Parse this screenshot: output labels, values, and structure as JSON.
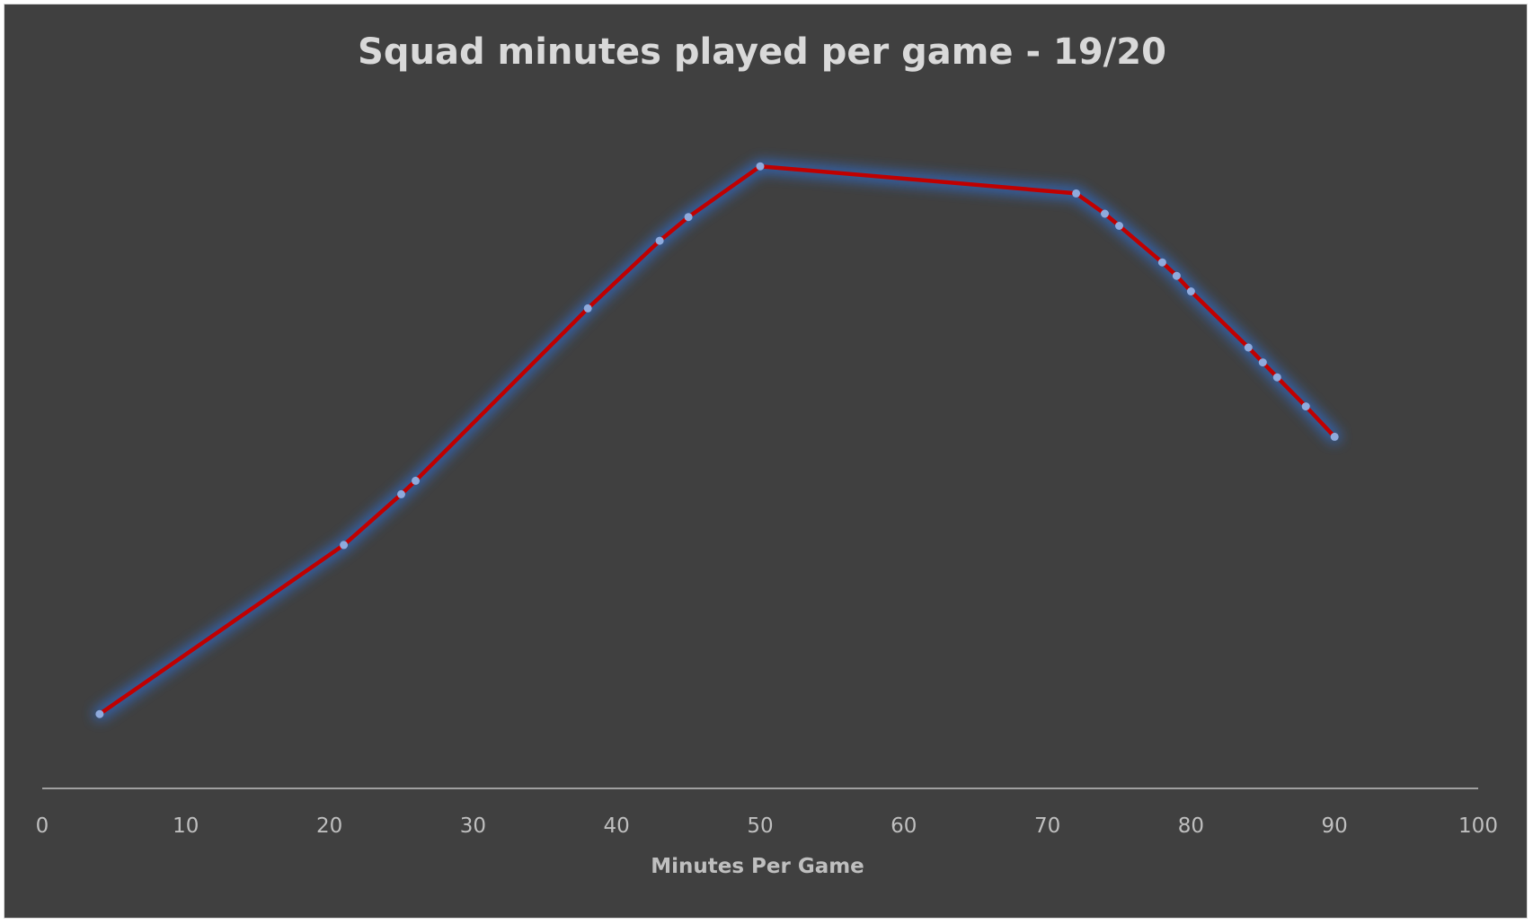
{
  "chart_data": {
    "type": "line",
    "title": "Squad minutes played per game - 19/20",
    "xlabel": "Minutes Per Game",
    "ylabel": "",
    "xlim": [
      0,
      100
    ],
    "xticks": [
      "0",
      "10",
      "20",
      "30",
      "40",
      "50",
      "60",
      "70",
      "80",
      "90",
      "100"
    ],
    "ylim": [
      0,
      100
    ],
    "y_axis_visible": false,
    "grid": false,
    "legend": "none",
    "colors": {
      "background": "#404040",
      "line": "#c00000",
      "marker": "#8faadc",
      "glow": "#2f6fd6",
      "axis": "#bfbfbf",
      "text": "#d9d9d9"
    },
    "series": [
      {
        "x": [
          4,
          21,
          25,
          26,
          38,
          43,
          45,
          50,
          72,
          74,
          75,
          78,
          79,
          80,
          84,
          85,
          86,
          88,
          90
        ],
        "y": [
          11,
          36,
          43.5,
          45.5,
          71,
          81,
          84.5,
          92,
          88,
          85,
          83.2,
          77.8,
          75.8,
          73.5,
          65.2,
          63,
          60.8,
          56.5,
          52
        ]
      }
    ]
  }
}
